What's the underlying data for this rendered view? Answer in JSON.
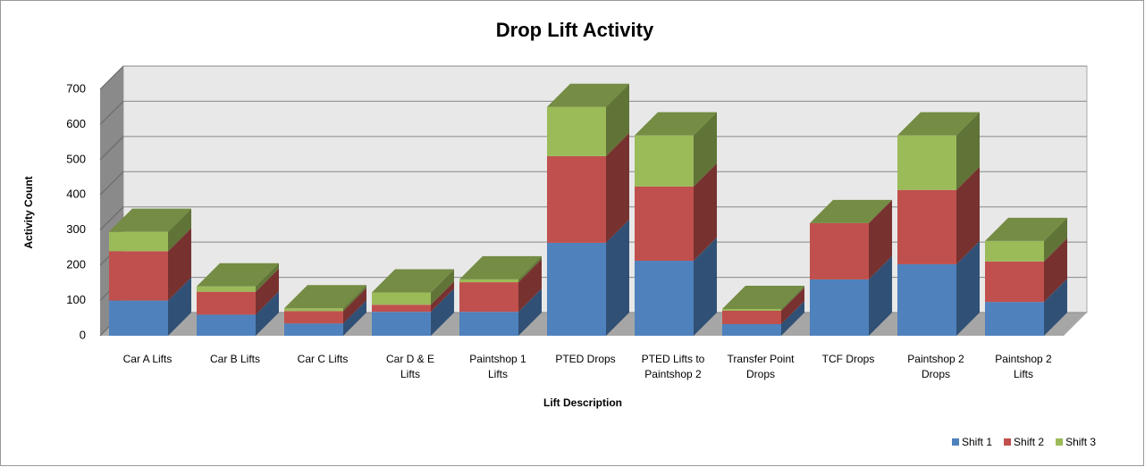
{
  "chart_data": {
    "type": "bar3d_stacked",
    "title": "Drop Lift Activity",
    "x_label": "Lift Description",
    "y_label": "Activity  Count",
    "categories": [
      "Car A Lifts",
      "Car B Lifts",
      "Car C Lifts",
      "Car D & E Lifts",
      "Paintshop 1 Lifts",
      "PTED Drops",
      "PTED Lifts to Paintshop 2",
      "Transfer Point Drops",
      "TCF Drops",
      "Paintshop 2 Drops",
      "Paintshop 2 Lifts"
    ],
    "series": [
      {
        "name": "Shift 1",
        "color": "#4f81bd",
        "values": [
          100,
          60,
          35,
          68,
          68,
          264,
          213,
          33,
          160,
          203,
          96
        ]
      },
      {
        "name": "Shift 2",
        "color": "#c0504d",
        "values": [
          140,
          65,
          35,
          20,
          84,
          246,
          211,
          38,
          160,
          211,
          115
        ]
      },
      {
        "name": "Shift 3",
        "color": "#9bbb59",
        "values": [
          55,
          15,
          8,
          35,
          8,
          140,
          145,
          5,
          0,
          155,
          58
        ]
      }
    ],
    "ylim": [
      0,
      700
    ],
    "yticks": [
      0,
      100,
      200,
      300,
      400,
      500,
      600,
      700
    ],
    "grid": true,
    "legend": "bottom-right"
  }
}
